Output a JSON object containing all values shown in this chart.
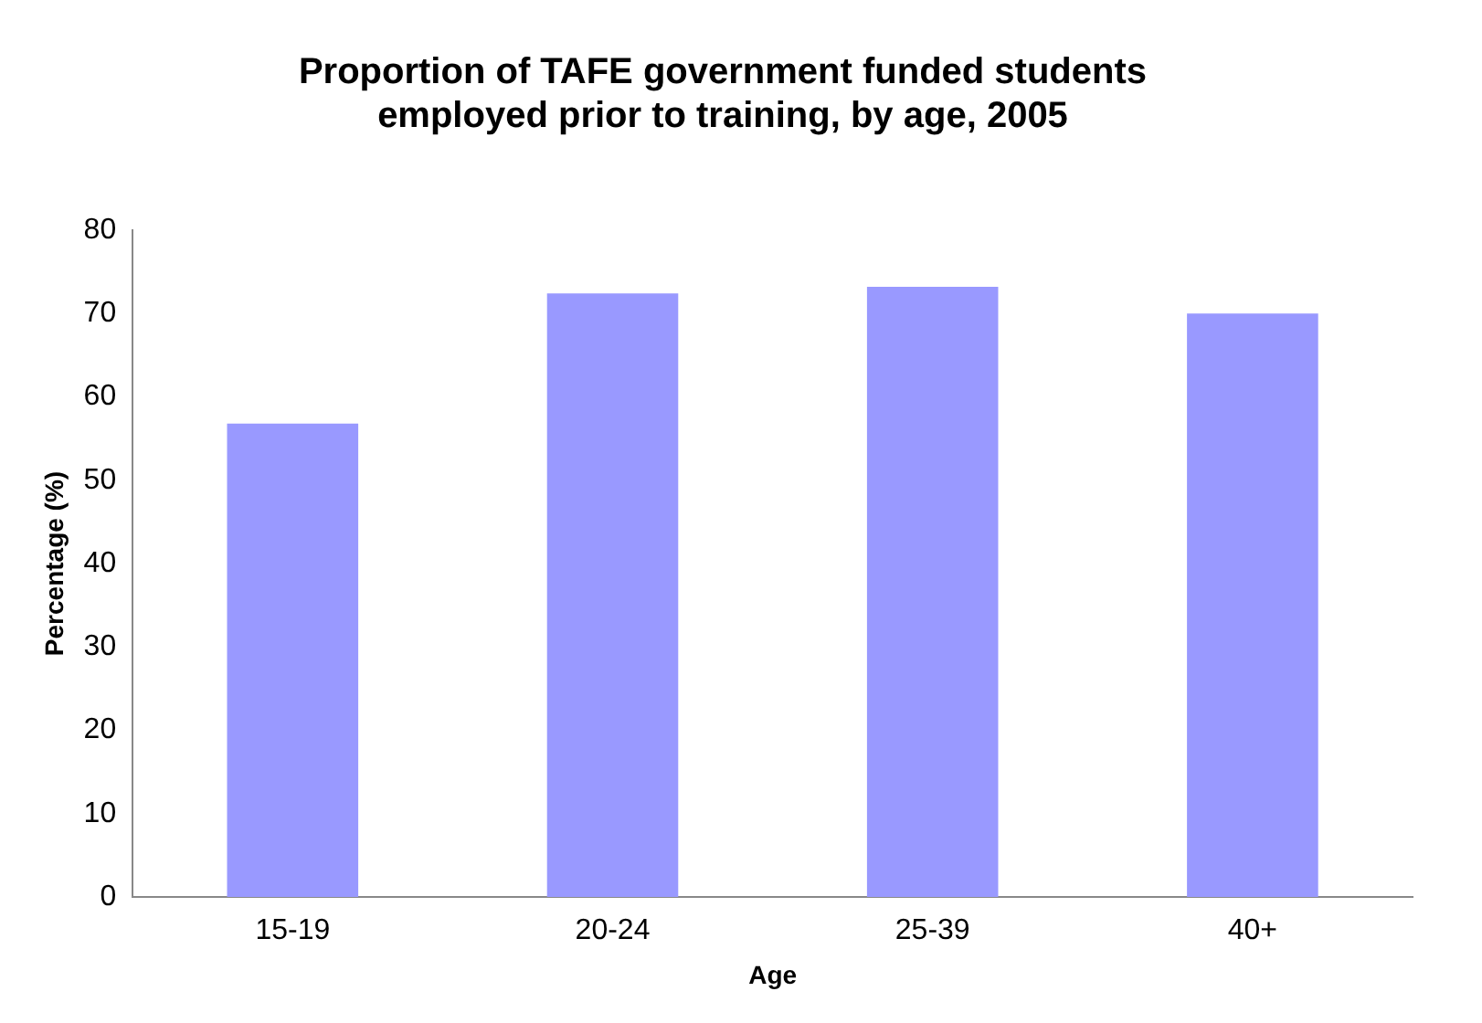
{
  "chart_data": {
    "type": "bar",
    "title": "Proportion of TAFE government funded students employed prior to training, by age, 2005",
    "xlabel": "Age",
    "ylabel": "Percentage (%)",
    "categories": [
      "15-19",
      "20-24",
      "25-39",
      "40+"
    ],
    "values": [
      56.8,
      72.4,
      73.2,
      70
    ],
    "color": "#9999ff",
    "ylim": [
      0,
      80
    ],
    "yticks": [
      0,
      10,
      20,
      30,
      40,
      50,
      60,
      70,
      80
    ],
    "grid": false,
    "legend": false
  }
}
